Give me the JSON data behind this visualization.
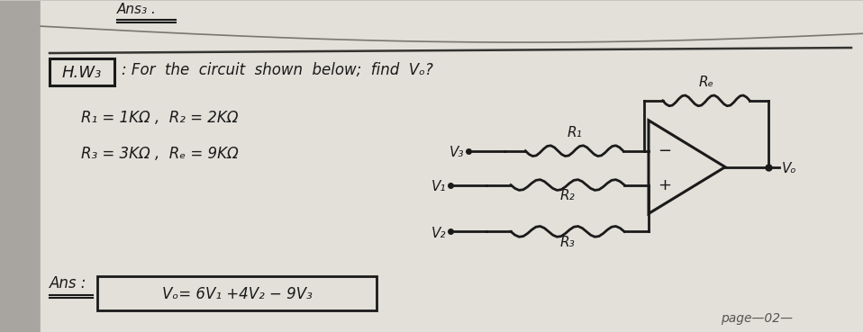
{
  "bg_color": "#c8c5be",
  "paper_color": "#e2e0d8",
  "left_shadow_color": "#a8a5a0",
  "line_color": "#1a1a1a",
  "top_text": "Ans₃ .",
  "hw_box_text": "H.W₃",
  "question_text": ": For  the  circuit  shown  below;  find  Vₒ?",
  "line1": "R₁ = 1KΩ ,  R₂ = 2KΩ",
  "line2": "R₃ = 3KΩ ,  Rₑ = 9KΩ",
  "ans_prefix": "Ans :",
  "ans_formula": "Vₒ= 6V₁ +4V₂ − 9V₃",
  "bottom_text": "page—02—",
  "circuit": {
    "Rf_label": "Rₑ",
    "R1_label": "R₁",
    "R2_label": "R₂",
    "R3_label": "R₃",
    "V1_label": "V₁",
    "V2_label": "V₂",
    "V3_label": "V₃",
    "Vo_label": "Vₒ"
  }
}
